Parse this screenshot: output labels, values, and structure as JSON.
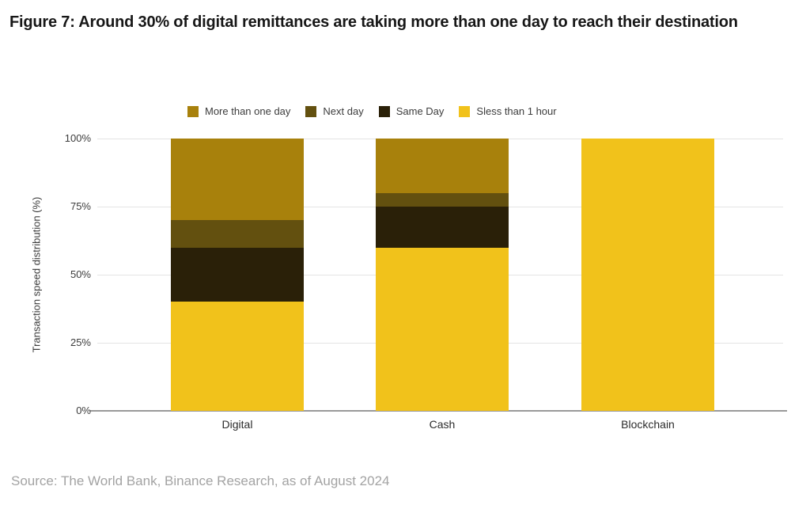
{
  "figure": {
    "title": "Figure 7: Around 30% of digital remittances are taking more than one day to reach their destination",
    "source": "Source: The World Bank, Binance Research, as of August 2024"
  },
  "chart_data": {
    "type": "bar",
    "stacked": true,
    "unit": "%",
    "title": "Figure 7: Around 30% of digital remittances are taking more than one day to reach their destination",
    "xlabel": "",
    "ylabel": "Transaction speed distribution (%)",
    "categories": [
      "Digital",
      "Cash",
      "Blockchain"
    ],
    "series": [
      {
        "name": "More than one day",
        "color": "#A8810C",
        "values": [
          30,
          20,
          0
        ]
      },
      {
        "name": "Next day",
        "color": "#63500F",
        "values": [
          10,
          5,
          0
        ]
      },
      {
        "name": "Same Day",
        "color": "#2A2008",
        "values": [
          20,
          15,
          0
        ]
      },
      {
        "name": "Sless than 1 hour",
        "color": "#F1C21B",
        "values": [
          40,
          60,
          100
        ]
      }
    ],
    "ylim": [
      0,
      100
    ],
    "ytick_values": [
      0,
      25,
      50,
      75,
      100
    ],
    "yticks": [
      "0%",
      "25%",
      "50%",
      "75%",
      "100%"
    ],
    "grid": true,
    "legend_position": "top",
    "colors": {
      "gridline": "#e4e4e4",
      "axis_line": "#999999",
      "text": "#3c3c3c",
      "source_text": "#a3a3a3"
    }
  }
}
